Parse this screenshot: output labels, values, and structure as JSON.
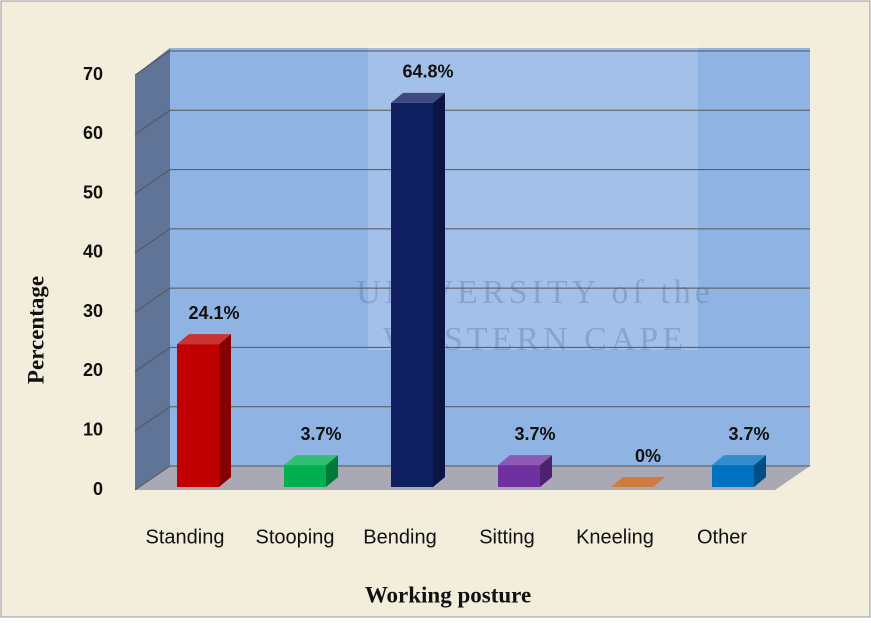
{
  "chart_data": {
    "type": "bar",
    "categories": [
      "Standing",
      "Stooping",
      "Bending",
      "Sitting",
      "Kneeling",
      "Other"
    ],
    "values": [
      24.1,
      3.7,
      64.8,
      3.7,
      0,
      3.7
    ],
    "value_labels": [
      "24.1%",
      "3.7%",
      "64.8%",
      "3.7%",
      "0%",
      "3.7%"
    ],
    "colors": [
      "#c00000",
      "#00b050",
      "#0f1f5f",
      "#7030a0",
      "#c55a11",
      "#0070c0"
    ],
    "ylim": [
      0,
      70
    ],
    "yticks": [
      0,
      10,
      20,
      30,
      40,
      50,
      60,
      70
    ],
    "grid": true,
    "xlabel": "Working posture",
    "ylabel": "Percentage",
    "watermark": [
      "UNIVERSITY of the",
      "WESTERN CAPE"
    ]
  }
}
